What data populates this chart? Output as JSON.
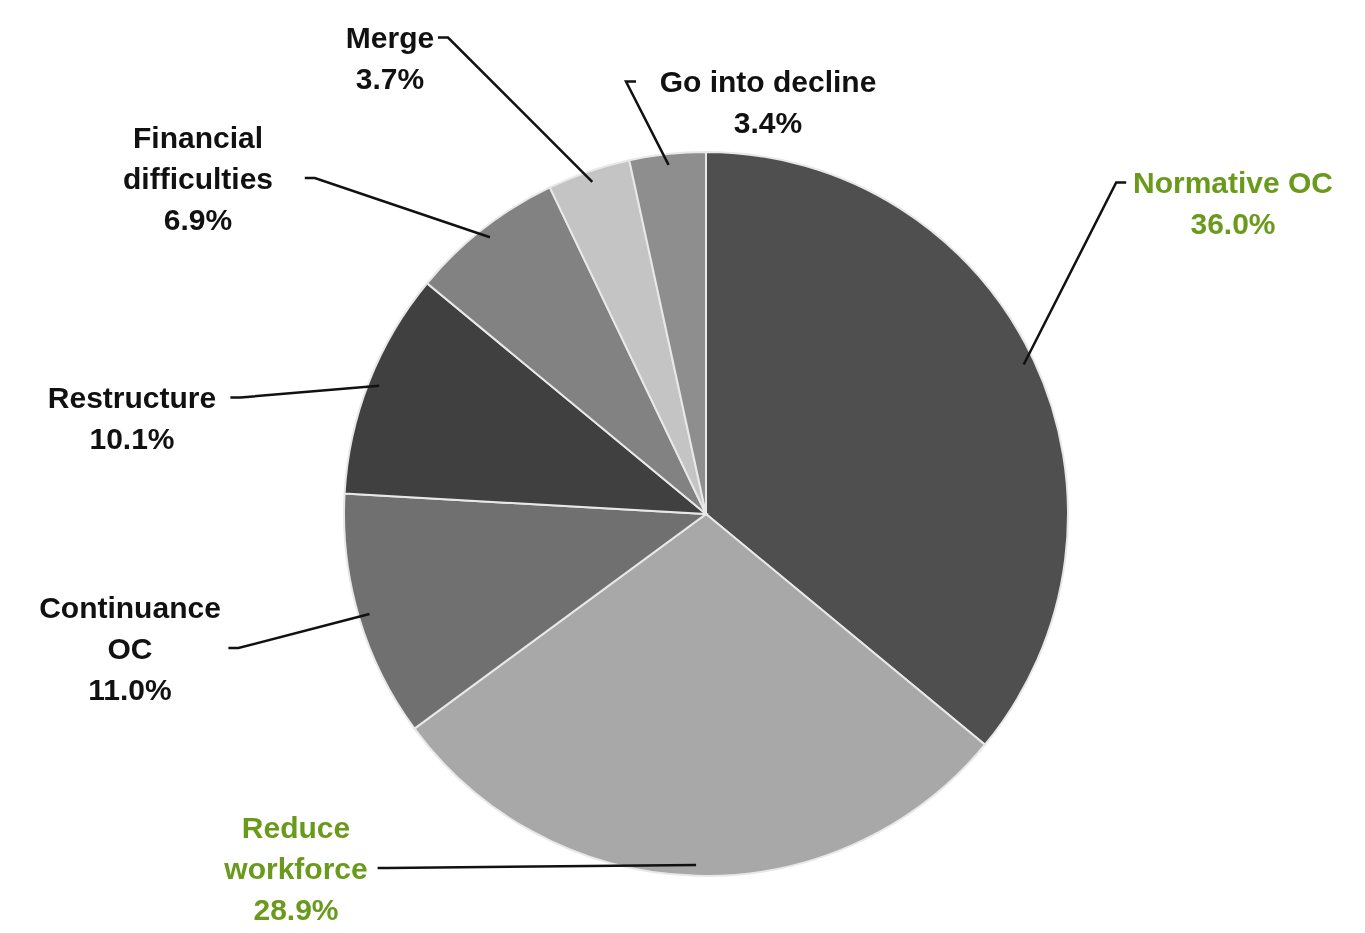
{
  "chart_data": {
    "type": "pie",
    "categories": [
      "Normative OC",
      "Reduce workforce",
      "Continuance OC",
      "Restructure",
      "Financial difficulties",
      "Merge",
      "Go into decline"
    ],
    "values": [
      36.0,
      28.9,
      11.0,
      10.1,
      6.9,
      3.7,
      3.4
    ],
    "value_labels": [
      "36.0%",
      "28.9%",
      "11.0%",
      "10.1%",
      "6.9%",
      "3.7%",
      "3.4%"
    ],
    "colors": [
      "#4f4f4f",
      "#a8a8a8",
      "#707070",
      "#404040",
      "#828282",
      "#c4c4c4",
      "#8e8e8e"
    ]
  }
}
